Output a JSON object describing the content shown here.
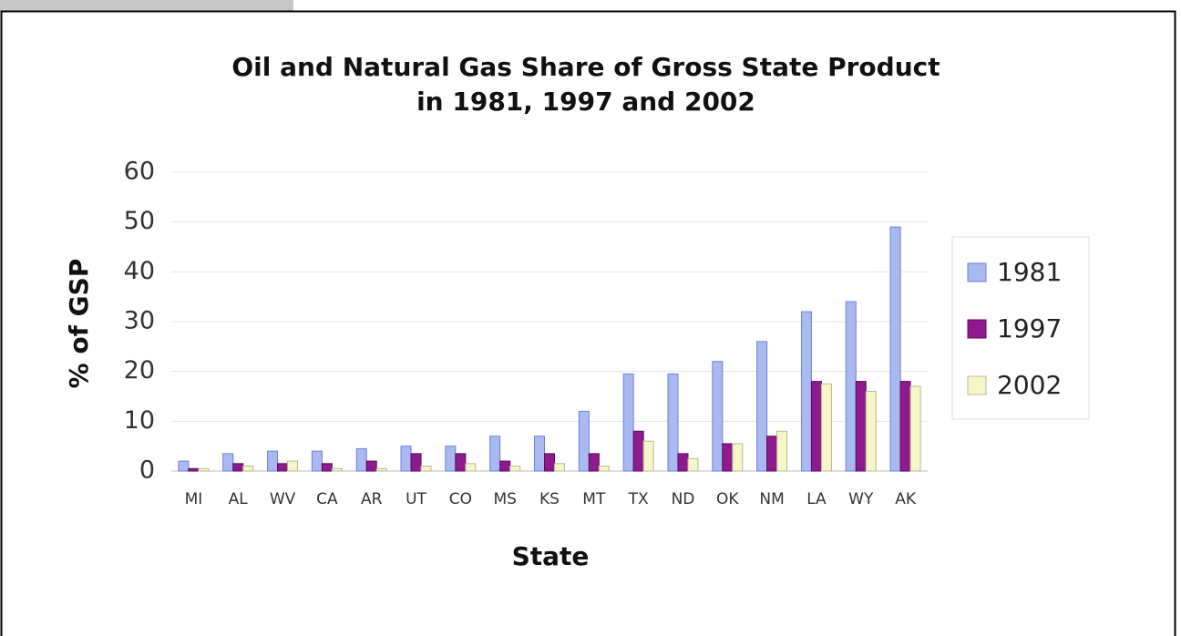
{
  "chart_data": {
    "type": "bar",
    "title": [
      "Oil and Natural Gas Share of Gross State Product",
      "in 1981, 1997 and 2002"
    ],
    "x_label": "State",
    "y_label": "% of GSP",
    "categories": [
      "MI",
      "AL",
      "WV",
      "CA",
      "AR",
      "UT",
      "CO",
      "MS",
      "KS",
      "MT",
      "TX",
      "ND",
      "OK",
      "NM",
      "LA",
      "WY",
      "AK"
    ],
    "series": [
      {
        "name": "1981",
        "color": "#aab9f2",
        "values": [
          2,
          3.5,
          4,
          4,
          4.5,
          5,
          5,
          7,
          7,
          12,
          19.5,
          19.5,
          22,
          26,
          32,
          34,
          49
        ]
      },
      {
        "name": "1997",
        "color": "#8e1a8e",
        "values": [
          0.5,
          1.5,
          1.5,
          1.5,
          2,
          3.5,
          3.5,
          2,
          3.5,
          3.5,
          8,
          3.5,
          5.5,
          7,
          18,
          18,
          18
        ]
      },
      {
        "name": "2002",
        "color": "#f6f6c9",
        "values": [
          0.5,
          1,
          2,
          0.5,
          0.5,
          1,
          1.5,
          1,
          1.5,
          1,
          6,
          2.5,
          5.5,
          8,
          17.5,
          16,
          17
        ]
      }
    ],
    "ylim": [
      0,
      60
    ],
    "yticks": [
      0,
      10,
      20,
      30,
      40,
      50,
      60
    ],
    "grid": true,
    "legend": "right"
  }
}
